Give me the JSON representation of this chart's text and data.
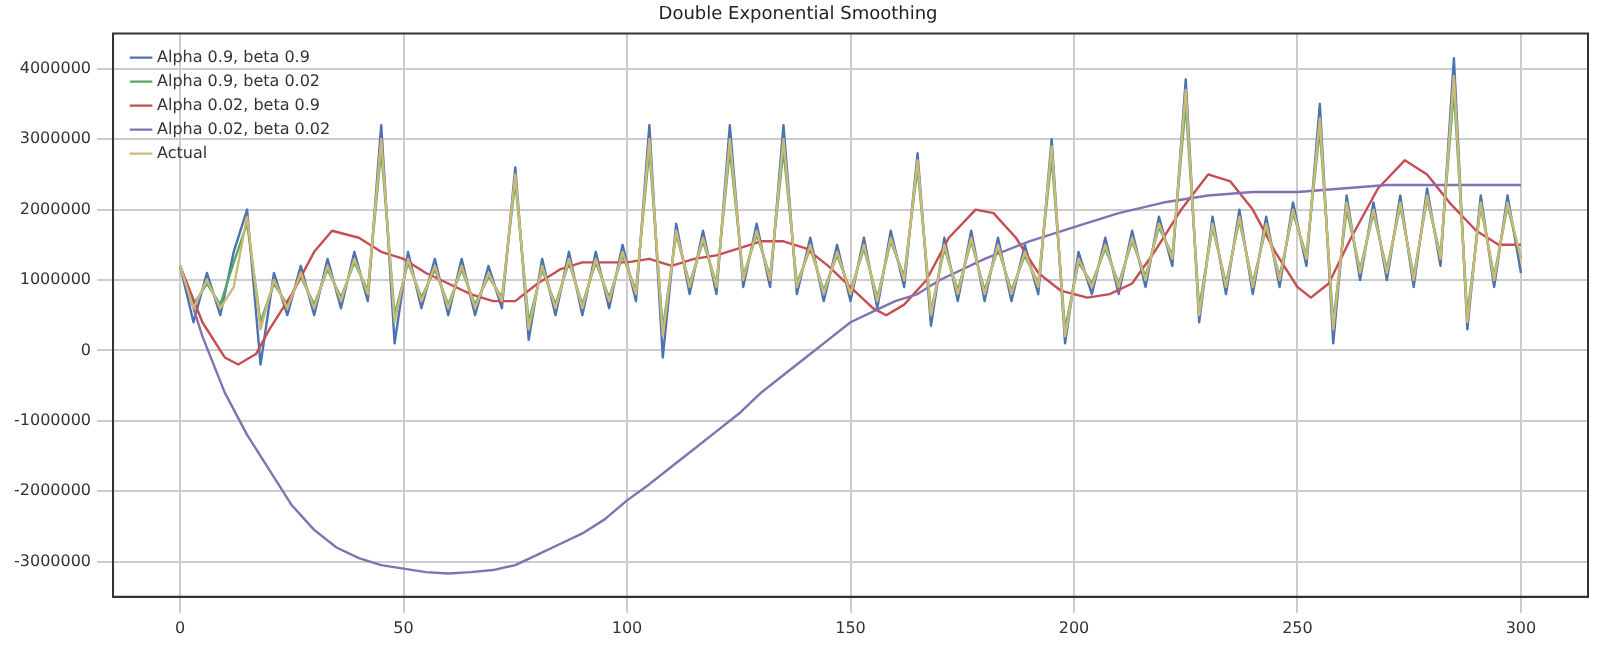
{
  "chart_data": {
    "type": "line",
    "title": "Double Exponential Smoothing",
    "x": [
      0,
      3,
      6,
      9,
      12,
      15,
      18,
      21,
      24,
      27,
      30,
      33,
      36,
      39,
      42,
      45,
      48,
      51,
      54,
      57,
      60,
      63,
      66,
      69,
      72,
      75,
      78,
      81,
      84,
      87,
      90,
      93,
      96,
      99,
      102,
      105,
      108,
      111,
      114,
      117,
      120,
      123,
      126,
      129,
      132,
      135,
      138,
      141,
      144,
      147,
      150,
      153,
      156,
      159,
      162,
      165,
      168,
      171,
      174,
      177,
      180,
      183,
      186,
      189,
      192,
      195,
      198,
      201,
      204,
      207,
      210,
      213,
      216,
      219,
      222,
      225,
      228,
      231,
      234,
      237,
      240,
      243,
      246,
      249,
      252,
      255,
      258,
      261,
      264,
      267,
      270,
      273,
      276,
      279,
      282,
      285,
      288,
      291,
      294,
      297,
      300
    ],
    "series": [
      {
        "name": "Alpha 0.9, beta 0.9",
        "color": "#4c72b0",
        "values": [
          1200000,
          400000,
          1100000,
          500000,
          1400000,
          2000000,
          -200000,
          1100000,
          500000,
          1200000,
          500000,
          1300000,
          600000,
          1400000,
          700000,
          3200000,
          100000,
          1400000,
          600000,
          1300000,
          500000,
          1300000,
          500000,
          1200000,
          600000,
          2600000,
          150000,
          1300000,
          500000,
          1400000,
          500000,
          1400000,
          600000,
          1500000,
          700000,
          3200000,
          -100000,
          1800000,
          800000,
          1700000,
          800000,
          3200000,
          900000,
          1800000,
          900000,
          3200000,
          800000,
          1600000,
          700000,
          1500000,
          700000,
          1600000,
          600000,
          1700000,
          900000,
          2800000,
          350000,
          1600000,
          700000,
          1700000,
          700000,
          1600000,
          700000,
          1500000,
          800000,
          3000000,
          100000,
          1400000,
          800000,
          1600000,
          800000,
          1700000,
          900000,
          1900000,
          1200000,
          3850000,
          400000,
          1900000,
          800000,
          2000000,
          800000,
          1900000,
          900000,
          2100000,
          1200000,
          3500000,
          100000,
          2200000,
          1000000,
          2100000,
          1000000,
          2200000,
          900000,
          2300000,
          1200000,
          4150000,
          300000,
          2200000,
          900000,
          2200000,
          1100000
        ]
      },
      {
        "name": "Alpha 0.9, beta 0.02",
        "color": "#55a868",
        "values": [
          1200000,
          650000,
          950000,
          650000,
          1250000,
          1800000,
          400000,
          950000,
          650000,
          1050000,
          650000,
          1150000,
          750000,
          1250000,
          850000,
          2850000,
          500000,
          1250000,
          750000,
          1150000,
          650000,
          1150000,
          650000,
          1050000,
          750000,
          2400000,
          400000,
          1150000,
          650000,
          1250000,
          650000,
          1250000,
          750000,
          1350000,
          850000,
          2850000,
          300000,
          1650000,
          950000,
          1550000,
          950000,
          2850000,
          1050000,
          1650000,
          1050000,
          2850000,
          950000,
          1450000,
          850000,
          1350000,
          850000,
          1450000,
          750000,
          1550000,
          1050000,
          2600000,
          550000,
          1450000,
          850000,
          1550000,
          850000,
          1450000,
          850000,
          1350000,
          950000,
          2750000,
          300000,
          1250000,
          950000,
          1450000,
          950000,
          1550000,
          1050000,
          1750000,
          1350000,
          3500000,
          600000,
          1750000,
          950000,
          1850000,
          950000,
          1750000,
          1050000,
          1950000,
          1350000,
          3150000,
          400000,
          2000000,
          1150000,
          1950000,
          1150000,
          2050000,
          1050000,
          2150000,
          1350000,
          3700000,
          500000,
          2050000,
          1050000,
          2050000,
          1300000
        ]
      },
      {
        "name": "Alpha 0.02, beta 0.9",
        "color": "#c44e52",
        "x": [
          0,
          5,
          10,
          13,
          17,
          20,
          25,
          30,
          34,
          40,
          45,
          50,
          55,
          60,
          65,
          70,
          75,
          80,
          85,
          90,
          95,
          100,
          105,
          110,
          115,
          120,
          125,
          130,
          135,
          140,
          145,
          150,
          155,
          158,
          162,
          167,
          172,
          178,
          182,
          187,
          192,
          197,
          203,
          208,
          213,
          218,
          224,
          230,
          235,
          240,
          245,
          250,
          253,
          257,
          262,
          268,
          274,
          279,
          284,
          290,
          295,
          300
        ],
        "values": [
          1200000,
          400000,
          -100000,
          -200000,
          -50000,
          300000,
          800000,
          1400000,
          1700000,
          1600000,
          1400000,
          1300000,
          1100000,
          950000,
          800000,
          700000,
          700000,
          950000,
          1150000,
          1250000,
          1250000,
          1250000,
          1300000,
          1200000,
          1300000,
          1350000,
          1450000,
          1550000,
          1550000,
          1450000,
          1200000,
          900000,
          600000,
          500000,
          650000,
          1000000,
          1600000,
          2000000,
          1950000,
          1600000,
          1100000,
          850000,
          750000,
          800000,
          950000,
          1400000,
          2000000,
          2500000,
          2400000,
          2000000,
          1400000,
          900000,
          750000,
          950000,
          1600000,
          2300000,
          2700000,
          2500000,
          2100000,
          1700000,
          1500000,
          1500000
        ]
      },
      {
        "name": "Alpha 0.02, beta 0.02",
        "color": "#8172b2",
        "x": [
          0,
          5,
          10,
          15,
          20,
          25,
          30,
          35,
          40,
          45,
          50,
          55,
          60,
          65,
          70,
          75,
          80,
          85,
          90,
          95,
          100,
          105,
          110,
          115,
          120,
          125,
          130,
          135,
          140,
          145,
          150,
          155,
          160,
          165,
          170,
          180,
          190,
          200,
          210,
          220,
          230,
          240,
          250,
          260,
          270,
          280,
          290,
          300
        ],
        "values": [
          1200000,
          200000,
          -600000,
          -1200000,
          -1700000,
          -2200000,
          -2550000,
          -2800000,
          -2950000,
          -3050000,
          -3100000,
          -3150000,
          -3170000,
          -3150000,
          -3120000,
          -3050000,
          -2900000,
          -2750000,
          -2600000,
          -2400000,
          -2130000,
          -1900000,
          -1650000,
          -1400000,
          -1150000,
          -900000,
          -600000,
          -350000,
          -100000,
          150000,
          400000,
          550000,
          700000,
          800000,
          1000000,
          1300000,
          1550000,
          1750000,
          1950000,
          2100000,
          2200000,
          2250000,
          2250000,
          2300000,
          2350000,
          2350000,
          2350000,
          2350000
        ]
      },
      {
        "name": "Actual",
        "color": "#ccb974",
        "values": [
          1200000,
          600000,
          1000000,
          600000,
          900000,
          1900000,
          300000,
          1000000,
          600000,
          1100000,
          600000,
          1200000,
          700000,
          1300000,
          800000,
          3000000,
          400000,
          1300000,
          700000,
          1200000,
          600000,
          1200000,
          600000,
          1100000,
          700000,
          2500000,
          300000,
          1200000,
          600000,
          1300000,
          600000,
          1300000,
          700000,
          1400000,
          800000,
          3000000,
          200000,
          1700000,
          900000,
          1600000,
          900000,
          3000000,
          1000000,
          1700000,
          1000000,
          3000000,
          900000,
          1500000,
          800000,
          1400000,
          800000,
          1500000,
          700000,
          1600000,
          1000000,
          2700000,
          500000,
          1500000,
          800000,
          1600000,
          800000,
          1500000,
          800000,
          1400000,
          900000,
          2900000,
          200000,
          1300000,
          900000,
          1500000,
          900000,
          1600000,
          1000000,
          1800000,
          1300000,
          3700000,
          500000,
          1800000,
          900000,
          1900000,
          900000,
          1800000,
          1000000,
          2000000,
          1300000,
          3300000,
          300000,
          2100000,
          1100000,
          2000000,
          1100000,
          2100000,
          1000000,
          2200000,
          1300000,
          3900000,
          400000,
          2100000,
          1000000,
          2100000,
          1300000
        ]
      }
    ],
    "xlim": [
      -15,
      315
    ],
    "xticks": [
      0,
      50,
      100,
      150,
      200,
      250,
      300
    ],
    "ylim": [
      -3500000,
      4500000
    ],
    "yticks": [
      -3000000,
      -2000000,
      -1000000,
      0,
      1000000,
      2000000,
      3000000,
      4000000
    ],
    "grid": true,
    "legend": "top left"
  }
}
